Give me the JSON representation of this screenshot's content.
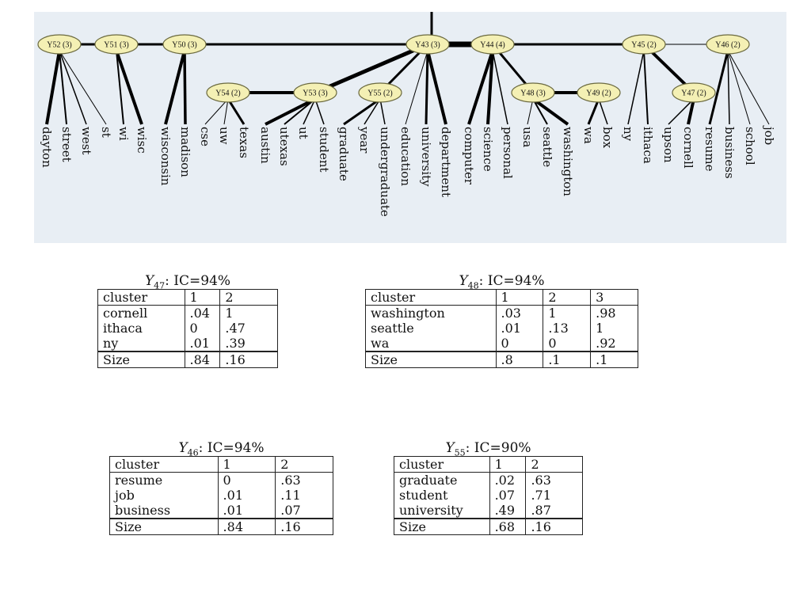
{
  "tree": {
    "nodes": [
      {
        "id": "Y52",
        "label": "Y52 (3)"
      },
      {
        "id": "Y51",
        "label": "Y51 (3)"
      },
      {
        "id": "Y50",
        "label": "Y50 (3)"
      },
      {
        "id": "Y43",
        "label": "Y43 (3)"
      },
      {
        "id": "Y44",
        "label": "Y44 (4)"
      },
      {
        "id": "Y45",
        "label": "Y45 (2)"
      },
      {
        "id": "Y46",
        "label": "Y46 (2)"
      },
      {
        "id": "Y54",
        "label": "Y54 (2)"
      },
      {
        "id": "Y53",
        "label": "Y53 (3)"
      },
      {
        "id": "Y55",
        "label": "Y55 (2)"
      },
      {
        "id": "Y48",
        "label": "Y48 (3)"
      },
      {
        "id": "Y49",
        "label": "Y49 (2)"
      },
      {
        "id": "Y47",
        "label": "Y47 (2)"
      }
    ],
    "leaves": [
      {
        "word": "dayton",
        "parent": "Y52",
        "weight": 4
      },
      {
        "word": "street",
        "parent": "Y52",
        "weight": 2
      },
      {
        "word": "west",
        "parent": "Y52",
        "weight": 1.5
      },
      {
        "word": "st",
        "parent": "Y52",
        "weight": 1
      },
      {
        "word": "wi",
        "parent": "Y51",
        "weight": 2
      },
      {
        "word": "wisc",
        "parent": "Y51",
        "weight": 4
      },
      {
        "word": "wisconsin",
        "parent": "Y50",
        "weight": 4
      },
      {
        "word": "madison",
        "parent": "Y50",
        "weight": 3.5
      },
      {
        "word": "cse",
        "parent": "Y54",
        "weight": 1
      },
      {
        "word": "uw",
        "parent": "Y54",
        "weight": 1
      },
      {
        "word": "texas",
        "parent": "Y54",
        "weight": 3
      },
      {
        "word": "austin",
        "parent": "Y53",
        "weight": 4
      },
      {
        "word": "utexas",
        "parent": "Y53",
        "weight": 2
      },
      {
        "word": "ut",
        "parent": "Y53",
        "weight": 1.5
      },
      {
        "word": "student",
        "parent": "Y53",
        "weight": 1.5
      },
      {
        "word": "graduate",
        "parent": "Y55",
        "weight": 3
      },
      {
        "word": "year",
        "parent": "Y55",
        "weight": 1.5
      },
      {
        "word": "undergraduate",
        "parent": "Y55",
        "weight": 1.5
      },
      {
        "word": "education",
        "parent": "Y43",
        "weight": 1
      },
      {
        "word": "university",
        "parent": "Y43",
        "weight": 3
      },
      {
        "word": "department",
        "parent": "Y43",
        "weight": 4
      },
      {
        "word": "computer",
        "parent": "Y44",
        "weight": 4
      },
      {
        "word": "science",
        "parent": "Y44",
        "weight": 4
      },
      {
        "word": "personal",
        "parent": "Y44",
        "weight": 1.5
      },
      {
        "word": "usa",
        "parent": "Y48",
        "weight": 1
      },
      {
        "word": "seattle",
        "parent": "Y48",
        "weight": 2
      },
      {
        "word": "washington",
        "parent": "Y48",
        "weight": 4
      },
      {
        "word": "wa",
        "parent": "Y49",
        "weight": 3
      },
      {
        "word": "box",
        "parent": "Y49",
        "weight": 1.5
      },
      {
        "word": "ny",
        "parent": "Y45",
        "weight": 1.5
      },
      {
        "word": "ithaca",
        "parent": "Y45",
        "weight": 2
      },
      {
        "word": "upson",
        "parent": "Y47",
        "weight": 1.5
      },
      {
        "word": "cornell",
        "parent": "Y47",
        "weight": 4
      },
      {
        "word": "resume",
        "parent": "Y46",
        "weight": 3
      },
      {
        "word": "business",
        "parent": "Y46",
        "weight": 1.5
      },
      {
        "word": "school",
        "parent": "Y46",
        "weight": 1
      },
      {
        "word": "job",
        "parent": "Y46",
        "weight": 1
      }
    ],
    "edges": [
      {
        "from": "Y52",
        "to": "Y51",
        "weight": 3
      },
      {
        "from": "Y51",
        "to": "Y50",
        "weight": 3
      },
      {
        "from": "Y50",
        "to": "Y43",
        "weight": 3
      },
      {
        "from": "Y43",
        "to": "Y44",
        "weight": 7
      },
      {
        "from": "Y44",
        "to": "Y45",
        "weight": 3
      },
      {
        "from": "Y45",
        "to": "Y46",
        "weight": 1
      },
      {
        "from": "Y54",
        "to": "Y53",
        "weight": 4
      },
      {
        "from": "Y53",
        "to": "Y43",
        "weight": 5
      },
      {
        "from": "Y55",
        "to": "Y43",
        "weight": 3
      },
      {
        "from": "Y44",
        "to": "Y48",
        "weight": 3
      },
      {
        "from": "Y48",
        "to": "Y49",
        "weight": 4
      },
      {
        "from": "Y45",
        "to": "Y47",
        "weight": 4
      }
    ],
    "colors": {
      "background": "#e8eef4",
      "node_fill": "#f4f0b4",
      "node_stroke": "#6b6a40",
      "line": "#000000"
    }
  },
  "tables": [
    {
      "id": "Y47",
      "var": "Y",
      "sub": "47",
      "ic_text": ": IC=94%",
      "header": [
        "cluster",
        "1",
        "2"
      ],
      "rows": [
        [
          "cornell",
          ".04",
          "1"
        ],
        [
          "ithaca",
          "0",
          ".47"
        ],
        [
          "ny",
          ".01",
          ".39"
        ]
      ],
      "size": [
        "Size",
        ".84",
        ".16"
      ]
    },
    {
      "id": "Y48",
      "var": "Y",
      "sub": "48",
      "ic_text": ": IC=94%",
      "header": [
        "cluster",
        "1",
        "2",
        "3"
      ],
      "rows": [
        [
          "washington",
          ".03",
          "1",
          ".98"
        ],
        [
          "seattle",
          ".01",
          ".13",
          "1"
        ],
        [
          "wa",
          "0",
          "0",
          ".92"
        ]
      ],
      "size": [
        "Size",
        ".8",
        ".1",
        ".1"
      ]
    },
    {
      "id": "Y46",
      "var": "Y",
      "sub": "46",
      "ic_text": ": IC=94%",
      "header": [
        "cluster",
        "1",
        "2"
      ],
      "rows": [
        [
          "resume",
          "0",
          ".63"
        ],
        [
          "job",
          ".01",
          ".11"
        ],
        [
          "business",
          ".01",
          ".07"
        ]
      ],
      "size": [
        "Size",
        ".84",
        ".16"
      ]
    },
    {
      "id": "Y55",
      "var": "Y",
      "sub": "55",
      "ic_text": ": IC=90%",
      "header": [
        "cluster",
        "1",
        "2"
      ],
      "rows": [
        [
          "graduate",
          ".02",
          ".63"
        ],
        [
          "student",
          ".07",
          ".71"
        ],
        [
          "university",
          ".49",
          ".87"
        ]
      ],
      "size": [
        "Size",
        ".68",
        ".16"
      ]
    }
  ]
}
